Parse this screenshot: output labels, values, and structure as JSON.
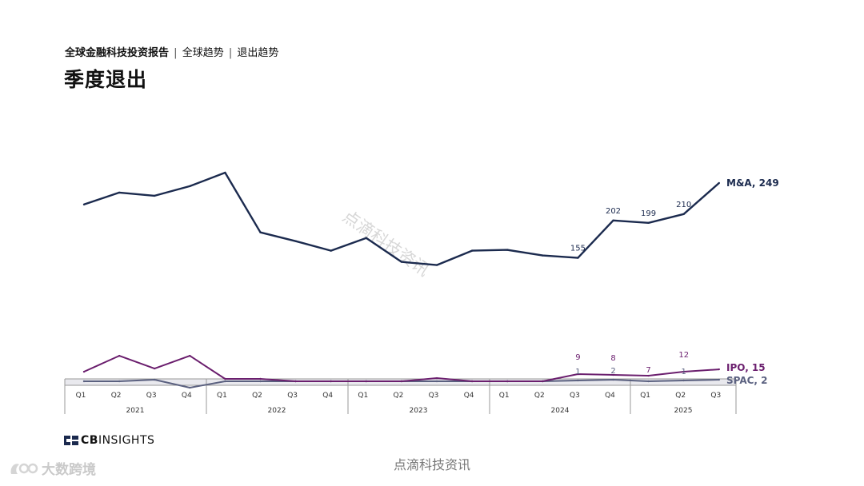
{
  "header": {
    "report": "全球金融科技投资报告",
    "sep1": "|",
    "section": "全球趋势",
    "sep2": "|",
    "subsection": "退出趋势"
  },
  "page_title": "季度退出",
  "logo": {
    "prefix": "CB",
    "suffix": "INSIGHTS"
  },
  "source_watermark": "点滴科技资讯",
  "diagonal_watermark": "点滴科技资讯",
  "corner_watermark": "大数跨境",
  "colors": {
    "ma": "#1b2a4e",
    "ipo": "#6b1f6e",
    "spac": "#5b6180",
    "axis": "#999999"
  },
  "chart_data": {
    "type": "line",
    "x": [
      "2021 Q1",
      "2021 Q2",
      "2021 Q3",
      "2021 Q4",
      "2022 Q1",
      "2022 Q2",
      "2022 Q3",
      "2022 Q4",
      "2023 Q1",
      "2023 Q2",
      "2023 Q3",
      "2023 Q4",
      "2024 Q1",
      "2024 Q2",
      "2024 Q3",
      "2024 Q4",
      "2025 Q1",
      "2025 Q2",
      "2025 Q3"
    ],
    "quarter_labels": [
      "Q1",
      "Q2",
      "Q3",
      "Q4",
      "Q1",
      "Q2",
      "Q3",
      "Q4",
      "Q1",
      "Q2",
      "Q3",
      "Q4",
      "Q1",
      "Q2",
      "Q3",
      "Q4",
      "Q1",
      "Q2",
      "Q3"
    ],
    "year_labels": [
      "2021",
      "2022",
      "2023",
      "2024",
      "2025"
    ],
    "series": [
      {
        "name": "M&A",
        "end_label": "M&A, 249",
        "color": "#1b2a4e",
        "values": [
          222,
          237,
          233,
          245,
          262,
          187,
          176,
          164,
          180,
          150,
          146,
          164,
          165,
          158,
          155,
          202,
          199,
          210,
          249
        ],
        "point_labels": {
          "14": "155",
          "15": "202",
          "16": "199",
          "17": "210"
        }
      },
      {
        "name": "IPO",
        "end_label": "IPO, 15",
        "color": "#6b1f6e",
        "values": [
          12,
          32,
          16,
          32,
          3,
          3,
          0,
          0,
          0,
          0,
          4,
          0,
          0,
          0,
          9,
          8,
          7,
          12,
          15
        ],
        "point_labels": {
          "14": "9",
          "15": "8",
          "16": "7",
          "17": "12"
        }
      },
      {
        "name": "SPAC",
        "end_label": "SPAC, 2",
        "color": "#5b6180",
        "values": [
          0,
          0,
          2,
          -8,
          0,
          0,
          0,
          0,
          0,
          0,
          0,
          0,
          0,
          0,
          1,
          2,
          0,
          1,
          2
        ],
        "point_labels": {
          "14": "1",
          "15": "2",
          "17": "1"
        }
      }
    ],
    "ylim": [
      -10,
      262
    ],
    "title": "季度退出",
    "xlabel": "",
    "ylabel": "",
    "grid": false,
    "legend": "end-of-line labels"
  }
}
